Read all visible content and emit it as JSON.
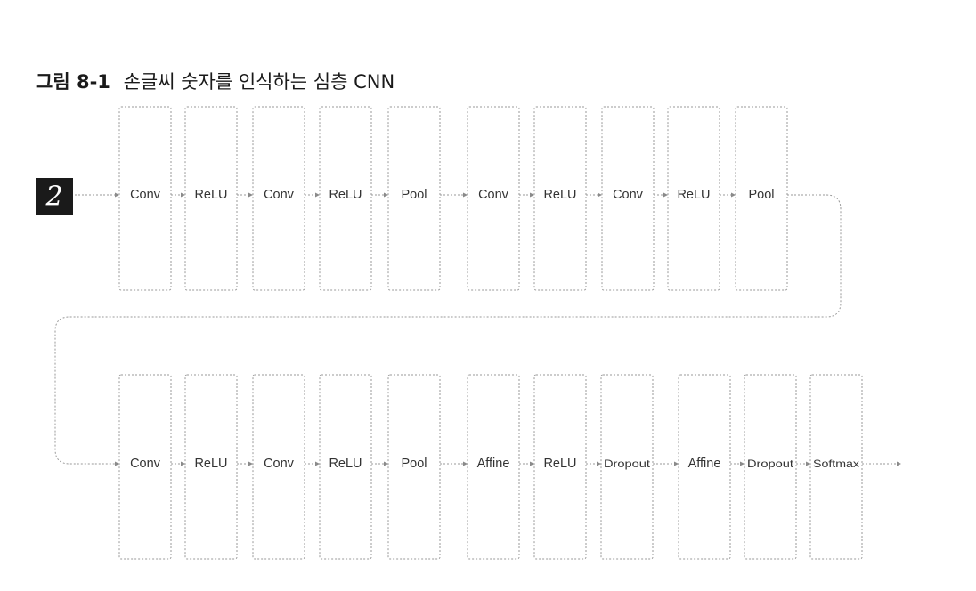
{
  "caption": {
    "number": "그림 8-1",
    "text": "손글씨 숫자를 인식하는 심층 CNN"
  },
  "input": {
    "digit": "2"
  },
  "rows": [
    {
      "layers": [
        "Conv",
        "ReLU",
        "Conv",
        "ReLU",
        "Pool",
        "Conv",
        "ReLU",
        "Conv",
        "ReLU",
        "Pool"
      ]
    },
    {
      "layers": [
        "Conv",
        "ReLU",
        "Conv",
        "ReLU",
        "Pool",
        "Affine",
        "ReLU",
        "Dropout",
        "Affine",
        "Dropout",
        "Softmax"
      ]
    }
  ],
  "colors": {
    "box_border": "#9a9a9a",
    "connector": "#999999",
    "text": "#333333",
    "input_bg": "#1a1a1a"
  }
}
